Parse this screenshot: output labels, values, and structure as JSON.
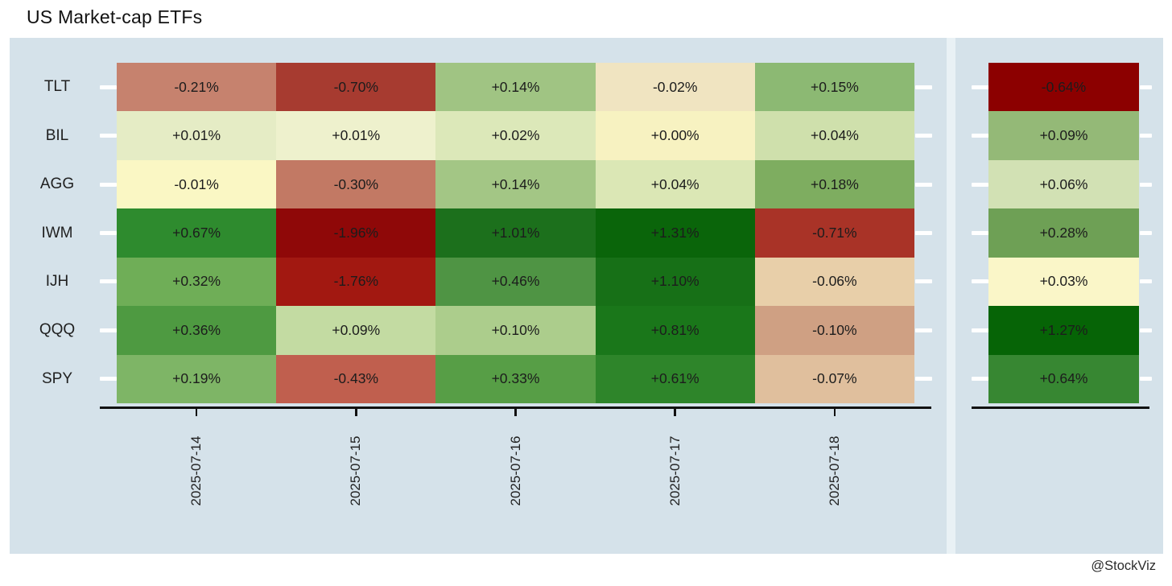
{
  "title": "US Market-cap ETFs",
  "attribution": "@StockViz",
  "theme": {
    "panel_background": "#d5e2ea",
    "panel_divider": "#e9f1f5",
    "axis_color": "#111111",
    "row_tick_dash_color": "#ffffff",
    "text_color": "#1f1f1f",
    "colormap": "diverging red-yellow-green"
  },
  "chart_data": {
    "type": "heatmap",
    "title": "US Market-cap ETFs",
    "xlabel": "",
    "ylabel": "",
    "legend": "none",
    "columns": [
      "2025-07-14",
      "2025-07-15",
      "2025-07-16",
      "2025-07-17",
      "2025-07-18"
    ],
    "rows": [
      {
        "ticker": "TLT",
        "daily": [
          {
            "value": "-0.21%",
            "color": "#c6826e"
          },
          {
            "value": "-0.70%",
            "color": "#a73b30"
          },
          {
            "value": "+0.14%",
            "color": "#a0c483"
          },
          {
            "value": "-0.02%",
            "color": "#f0e4c1"
          },
          {
            "value": "+0.15%",
            "color": "#8cb973"
          }
        ],
        "summary": {
          "value": "-0.64%",
          "color": "#8c0000"
        }
      },
      {
        "ticker": "BIL",
        "daily": [
          {
            "value": "+0.01%",
            "color": "#e5ecc5"
          },
          {
            "value": "+0.01%",
            "color": "#eef1cd"
          },
          {
            "value": "+0.02%",
            "color": "#dce8b9"
          },
          {
            "value": "+0.00%",
            "color": "#f7f2c1"
          },
          {
            "value": "+0.04%",
            "color": "#cfe0ac"
          }
        ],
        "summary": {
          "value": "+0.09%",
          "color": "#94b977"
        }
      },
      {
        "ticker": "AGG",
        "daily": [
          {
            "value": "-0.01%",
            "color": "#faf7c4"
          },
          {
            "value": "-0.30%",
            "color": "#c27964"
          },
          {
            "value": "+0.14%",
            "color": "#a3c685"
          },
          {
            "value": "+0.04%",
            "color": "#dbe7b5"
          },
          {
            "value": "+0.18%",
            "color": "#7ead60"
          }
        ],
        "summary": {
          "value": "+0.06%",
          "color": "#d2e1b4"
        }
      },
      {
        "ticker": "IWM",
        "daily": [
          {
            "value": "+0.67%",
            "color": "#2e8b2e"
          },
          {
            "value": "-1.96%",
            "color": "#8f0808"
          },
          {
            "value": "+1.01%",
            "color": "#1c701c"
          },
          {
            "value": "+1.31%",
            "color": "#0a650a"
          },
          {
            "value": "-0.71%",
            "color": "#a93327"
          }
        ],
        "summary": {
          "value": "+0.28%",
          "color": "#6ea055"
        }
      },
      {
        "ticker": "IJH",
        "daily": [
          {
            "value": "+0.32%",
            "color": "#6fae57"
          },
          {
            "value": "-1.76%",
            "color": "#a21811"
          },
          {
            "value": "+0.46%",
            "color": "#4f9444"
          },
          {
            "value": "+1.10%",
            "color": "#177017"
          },
          {
            "value": "-0.06%",
            "color": "#e8cfa9"
          }
        ],
        "summary": {
          "value": "+0.03%",
          "color": "#faf6c8"
        }
      },
      {
        "ticker": "QQQ",
        "daily": [
          {
            "value": "+0.36%",
            "color": "#4e9a41"
          },
          {
            "value": "+0.09%",
            "color": "#c3dba2"
          },
          {
            "value": "+0.10%",
            "color": "#accd8c"
          },
          {
            "value": "+0.81%",
            "color": "#1a771a"
          },
          {
            "value": "-0.10%",
            "color": "#cfa083"
          }
        ],
        "summary": {
          "value": "+1.27%",
          "color": "#066406"
        }
      },
      {
        "ticker": "SPY",
        "daily": [
          {
            "value": "+0.19%",
            "color": "#7eb566"
          },
          {
            "value": "-0.43%",
            "color": "#c05f4e"
          },
          {
            "value": "+0.33%",
            "color": "#579e46"
          },
          {
            "value": "+0.61%",
            "color": "#2e852a"
          },
          {
            "value": "-0.07%",
            "color": "#e0bf9d"
          }
        ],
        "summary": {
          "value": "+0.64%",
          "color": "#378732"
        }
      }
    ]
  }
}
